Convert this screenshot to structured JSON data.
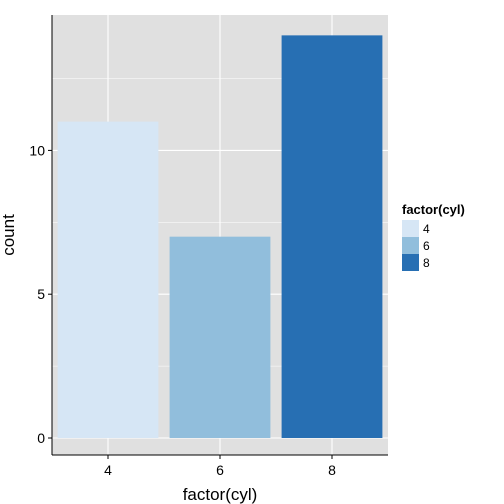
{
  "chart_data": {
    "type": "bar",
    "title": "",
    "xlabel": "factor(cyl)",
    "ylabel": "count",
    "categories": [
      "4",
      "6",
      "8"
    ],
    "values": [
      11,
      7,
      14
    ],
    "ylim": [
      0,
      14
    ],
    "yticks": [
      "0",
      "5",
      "10"
    ],
    "grid": true,
    "legend": {
      "title": "factor(cyl)",
      "placement": "right",
      "entries": [
        "4",
        "6",
        "8"
      ]
    },
    "colors": {
      "bars": [
        "#d6e6f5",
        "#91bedc",
        "#276fb3"
      ],
      "panel_background": "#e0e0e0",
      "grid": "#ffffff"
    }
  }
}
